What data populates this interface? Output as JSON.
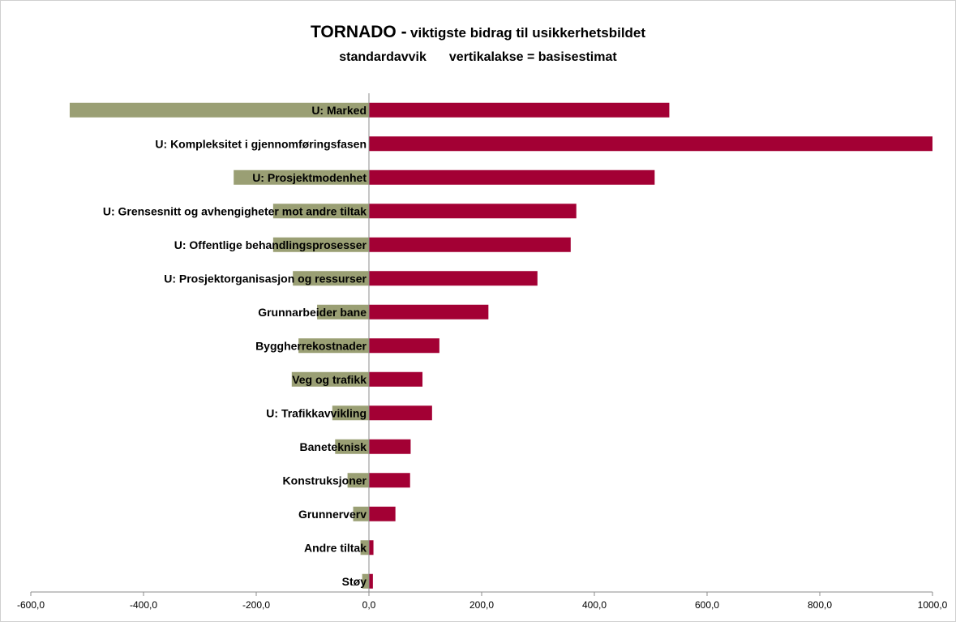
{
  "chart_data": {
    "type": "bar",
    "orientation": "horizontal",
    "title": {
      "main": "TORNADO -",
      "rest": "viktigste bidrag til usikkerhetsbildet",
      "subtitle_left": "standardavvik",
      "subtitle_right": "vertikalakse = basisestimat"
    },
    "categories": [
      "U: Marked",
      "U: Kompleksitet i gjennomføringsfasen",
      "U: Prosjektmodenhet",
      "U: Grensesnitt og avhengigheter mot andre tiltak",
      "U: Offentlige behandlingsprosesser",
      "U: Prosjektorganisasjon og ressurser",
      "Grunnarbeider bane",
      "Byggherrekostnader",
      "Veg og trafikk",
      "U: Trafikkavvikling",
      "Baneteknisk",
      "Konstruksjoner",
      "Grunnerverv",
      "Andre tiltak",
      "Støy"
    ],
    "series": [
      {
        "color": "#9a9f74",
        "values": [
          -531,
          0,
          -240,
          -170,
          -170,
          -135,
          -92,
          -125,
          -137,
          -65,
          -60,
          -38,
          -28,
          -15,
          -12
        ]
      },
      {
        "color": "#a30034",
        "values": [
          533,
          1000,
          507,
          368,
          358,
          299,
          212,
          125,
          95,
          112,
          74,
          73,
          47,
          8,
          7
        ]
      }
    ],
    "xlim": [
      -600,
      1000
    ],
    "xticks": [
      "-600,0",
      "-400,0",
      "-200,0",
      "0,0",
      "200,0",
      "400,0",
      "600,0",
      "800,0",
      "1000,0"
    ],
    "xtick_values": [
      -600,
      -400,
      -200,
      0,
      200,
      400,
      600,
      800,
      1000
    ],
    "legend": "none",
    "grid": false
  }
}
